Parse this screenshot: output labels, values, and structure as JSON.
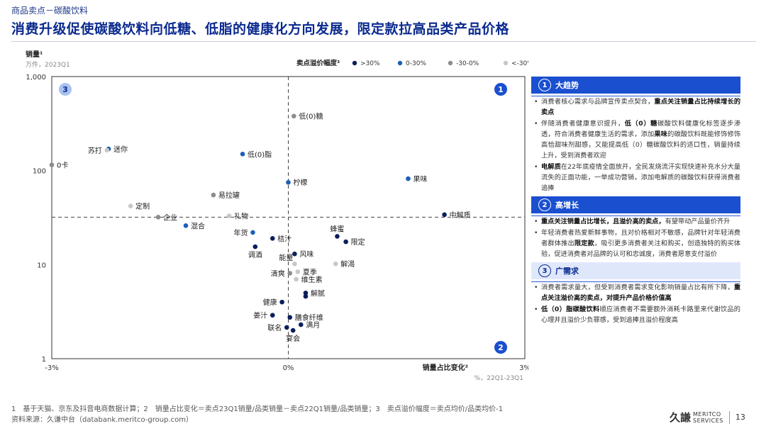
{
  "header": {
    "breadcrumb": "商品卖点－碳酸饮料",
    "title": "消费升级促使碳酸饮料向低糖、低脂的健康化方向发展，限定款拉高品类产品价格"
  },
  "chart_data": {
    "type": "scatter",
    "y_axis_title": "销量¹",
    "y_axis_unit": "万件，2023Q1",
    "y_scale": "log",
    "ylim": [
      1,
      1000
    ],
    "y_ticks": [
      "1",
      "10",
      "100",
      "1,000"
    ],
    "y_tick_values": [
      1,
      10,
      100,
      1000
    ],
    "x_axis_title": "销量占比变化²",
    "x_axis_unit": "%，22Q1-23Q1",
    "xlim": [
      -3,
      3
    ],
    "x_ticks": [
      "-3%",
      "0%",
      "3%"
    ],
    "x_tick_values": [
      -3,
      0,
      3
    ],
    "legend_title": "卖点溢价幅度³",
    "legend_position": "top",
    "reference_lines": {
      "x": 0,
      "y": 32
    },
    "series": [
      {
        "name": ">30%",
        "color": "#0a1f5c",
        "points": [
          {
            "label": "中解质",
            "x": 1.98,
            "y": 34
          },
          {
            "label": "蜂蜜",
            "x": 0.62,
            "y": 20
          },
          {
            "label": "限定",
            "x": 0.73,
            "y": 17.5
          },
          {
            "label": "桔汁",
            "x": -0.2,
            "y": 19
          },
          {
            "label": "调酒",
            "x": -0.42,
            "y": 15.5
          },
          {
            "label": "风味",
            "x": 0.08,
            "y": 13
          },
          {
            "label": "健康",
            "x": -0.08,
            "y": 4
          },
          {
            "label": "解腻",
            "x": 0.22,
            "y": 5
          },
          {
            "label": "",
            "x": 0.22,
            "y": 4.6
          },
          {
            "label": "姜汁",
            "x": -0.2,
            "y": 2.9
          },
          {
            "label": "膳食纤维",
            "x": 0.02,
            "y": 2.75
          },
          {
            "label": "满月",
            "x": 0.16,
            "y": 2.3
          },
          {
            "label": "联名",
            "x": -0.02,
            "y": 2.15
          },
          {
            "label": "宴会",
            "x": 0.06,
            "y": 2.0
          }
        ]
      },
      {
        "name": "0-30%",
        "color": "#1c5fb8",
        "points": [
          {
            "label": "迷你",
            "x": -2.28,
            "y": 170
          },
          {
            "label": "低(0)脂",
            "x": -0.58,
            "y": 150
          },
          {
            "label": "柠檬",
            "x": 0.0,
            "y": 75
          },
          {
            "label": "果味",
            "x": 1.52,
            "y": 82
          },
          {
            "label": "混合",
            "x": -1.3,
            "y": 26
          },
          {
            "label": "年货",
            "x": -0.45,
            "y": 22
          }
        ]
      },
      {
        "name": "-30-0%",
        "color": "#8c8c8c",
        "points": [
          {
            "label": "低(0)糖",
            "x": 0.07,
            "y": 380
          },
          {
            "label": "0卡",
            "x": -3.25,
            "y": 115
          },
          {
            "label": "易拉罐",
            "x": -0.95,
            "y": 55
          },
          {
            "label": "企业",
            "x": -1.65,
            "y": 32
          },
          {
            "label": "清爽",
            "x": 0.02,
            "y": 8.1
          }
        ]
      },
      {
        "name": "<-30%",
        "color": "#c8c8c8",
        "points": [
          {
            "label": "苏打",
            "x": -2.3,
            "y": 165
          },
          {
            "label": "定制",
            "x": -2.0,
            "y": 42
          },
          {
            "label": "礼物",
            "x": -0.75,
            "y": 33
          },
          {
            "label": "能量",
            "x": 0.08,
            "y": 10.2
          },
          {
            "label": "夏季",
            "x": 0.12,
            "y": 8.4
          },
          {
            "label": "维生素",
            "x": 0.1,
            "y": 7.0
          },
          {
            "label": "解渴",
            "x": 0.6,
            "y": 10.2
          }
        ]
      }
    ],
    "quadrant_labels": [
      "3",
      "1",
      "2"
    ],
    "quadrant_colors": {
      "dark": "#1a4fd0",
      "light": "#a9c2f0"
    }
  },
  "sidebar": {
    "sections": [
      {
        "num": "1",
        "title": "大趋势",
        "style": "dark",
        "bullets": [
          [
            {
              "t": "消费者核心需求与品牌宣传卖点契合，"
            },
            {
              "t": "重点关注销量占比持续增长的卖点",
              "b": true
            }
          ],
          [
            {
              "t": "伴随消费者健康意识提升，"
            },
            {
              "t": "低（0）糖",
              "b": true
            },
            {
              "t": "碳酸饮料健康化标签逐步渗透，符合消费者健康生活的需求，添加"
            },
            {
              "t": "果味",
              "b": true
            },
            {
              "t": "的碳酸饮料既能修饰修饰高恰甜味剂甜感，又能提高低（0）糖碳酸饮料的适口性，销量持续上升，受到消费者欢迎"
            }
          ],
          [
            {
              "t": "电解质",
              "b": true
            },
            {
              "t": "在22年底疫情全面放开，全民发烧流汗实现快速补充水分大量流失的正面功能，一举成功营销，添加电解质的碳酸饮料获得消费者追捧"
            }
          ]
        ]
      },
      {
        "num": "2",
        "title": "高增长",
        "style": "dark",
        "bullets": [
          [
            {
              "t": "重点关注销量占比增长，且溢价高的卖点，",
              "b": true
            },
            {
              "t": "有望带动产品量价齐升"
            }
          ],
          [
            {
              "t": "年轻消费者热爱新鲜事物，且对价格相对不敏感，品牌针对年轻消费者群体推出"
            },
            {
              "t": "限定款",
              "b": true
            },
            {
              "t": "，吸引更多消费者关注和购买，创造独特的购买体验，促进消费者对品牌的认可和忠诚度，消费者愿意支付溢价"
            }
          ]
        ]
      },
      {
        "num": "3",
        "title": "广需求",
        "style": "light",
        "bullets": [
          [
            {
              "t": "消费者需求量大，但受到消费者需求变化影响销量占比有所下降，"
            },
            {
              "t": "重点关注溢价高的卖点，对提升产品价格价值高",
              "b": true
            }
          ],
          [
            {
              "t": "低（0）脂碳酸饮料",
              "b": true
            },
            {
              "t": "顺应消费者不需要额外消耗卡路里来代谢饮品的心理并且溢价少负罪感，受到追捧且溢价程度高"
            }
          ]
        ]
      }
    ]
  },
  "footer": {
    "footnote": "1　基于天猫、京东及抖音电商数据计算；2　销量占比变化＝卖点23Q1销量/品类销量－卖点22Q1销量/品类销量；3　卖点溢价幅度＝卖点均价/品类均价-1",
    "source": "资料来源：久谦中台（databank.meritco-group.com）",
    "logo_cn": "久謙",
    "logo_en_1": "MERITCO",
    "logo_en_2": "SERVICES",
    "page_number": "13"
  }
}
